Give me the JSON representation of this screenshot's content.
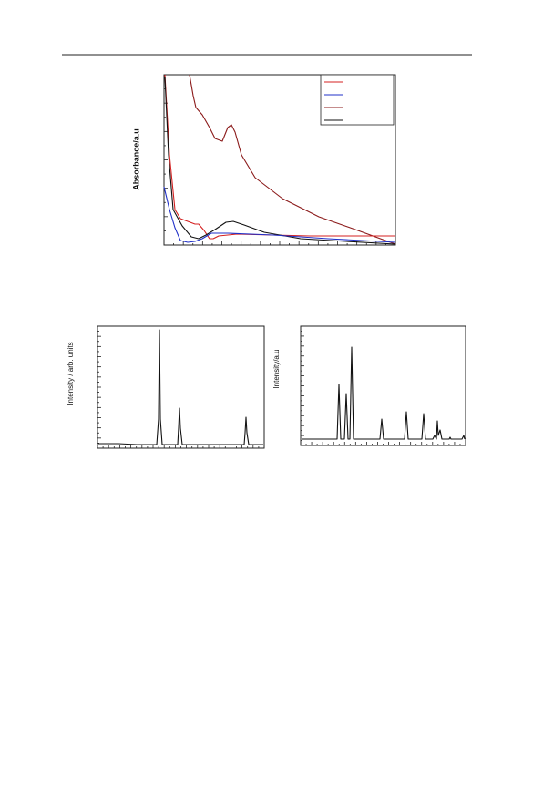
{
  "figures": [
    {
      "y_label": "Absorbance/a.u"
    },
    {
      "y_label": "Intensity / arb. units"
    },
    {
      "y_label": "Intensity/a.u"
    }
  ]
}
